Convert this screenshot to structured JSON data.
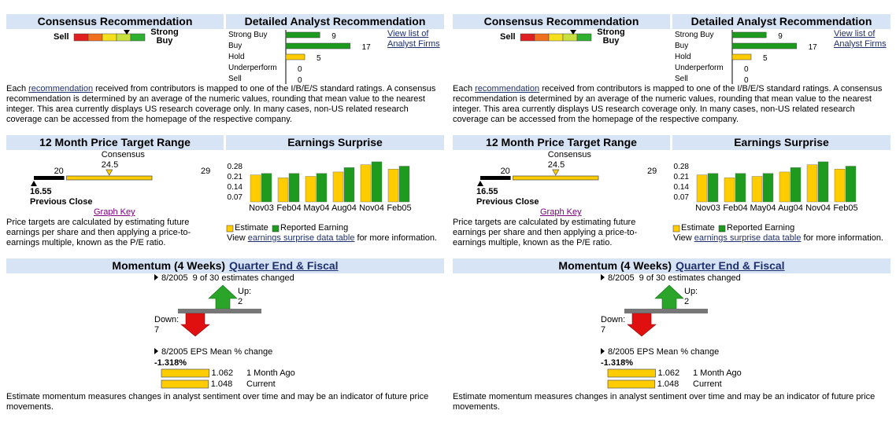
{
  "panels": [
    {
      "consensus": {
        "title": "Consensus Recommendation",
        "low_label": "Sell",
        "high_label": "Strong Buy"
      },
      "detailed": {
        "title": "Detailed Analyst Recommendation",
        "categories": [
          "Strong Buy",
          "Buy",
          "Hold",
          "Underperform",
          "Sell"
        ],
        "values": [
          9,
          17,
          5,
          0,
          0
        ],
        "colors": [
          "#1e9a1e",
          "#1e9a1e",
          "#ffcc00",
          "#1e9a1e",
          "#1e9a1e"
        ],
        "link": "View list of Analyst Firms"
      },
      "description": {
        "before": "Each ",
        "link": "recommendation",
        "after": " received from contributors is mapped to one of the I/B/E/S standard ratings. A consensus recommendation is determined by an average of the numeric values, rounding that mean value to the nearest integer. This area currently displays US research coverage only. In many cases, non-US related research coverage can be accessed from the homepage of the respective company."
      },
      "price_target": {
        "title": "12 Month Price Target Range",
        "consensus_label": "Consensus",
        "low": 20,
        "consensus": 24.5,
        "high": 29,
        "previous_close": 16.55,
        "previous_close_label": "Previous Close",
        "graph_key": "Graph Key",
        "description": "Price targets are calculated by estimating future earnings per share and then applying a price-to-earnings multiple, known as the P/E ratio."
      },
      "earnings": {
        "type": "bar",
        "title": "Earnings Surprise",
        "categories": [
          "Nov03",
          "Feb04",
          "May04",
          "Aug04",
          "Nov04",
          "Feb05"
        ],
        "series": [
          {
            "name": "Estimate",
            "color": "#ffcc00",
            "values": [
              0.22,
              0.2,
              0.21,
              0.24,
              0.29,
              0.26
            ]
          },
          {
            "name": "Reported Earning",
            "color": "#1e9a1e",
            "values": [
              0.23,
              0.23,
              0.23,
              0.27,
              0.31,
              0.28
            ]
          }
        ],
        "ylim": [
          0.035,
          0.315
        ],
        "yticks": [
          0.07,
          0.14,
          0.21,
          0.28
        ],
        "footer_before": "View ",
        "footer_link": "earnings surprise data table",
        "footer_after": " for more information."
      },
      "momentum": {
        "title": "Momentum (4 Weeks)",
        "link": "Quarter End & Fiscal",
        "period": "8/2005",
        "changed": "9 of 30 estimates changed",
        "up_label": "Up:",
        "up": 2,
        "down_label": "Down:",
        "down": 7,
        "eps_title": "8/2005 EPS Mean % change",
        "eps_change": "-1.318%",
        "categories": [
          "1 Month Ago",
          "Current"
        ],
        "values": [
          1.062,
          1.048
        ],
        "footer": "Estimate momentum measures changes in analyst sentiment over time and may be an indicator of future price movements."
      }
    },
    {
      "consensus": {
        "title": "Consensus Recommendation",
        "low_label": "Sell",
        "high_label": "Strong Buy"
      },
      "detailed": {
        "title": "Detailed Analyst Recommendation",
        "categories": [
          "Strong Buy",
          "Buy",
          "Hold",
          "Underperform",
          "Sell"
        ],
        "values": [
          9,
          17,
          5,
          0,
          0
        ],
        "colors": [
          "#1e9a1e",
          "#1e9a1e",
          "#ffcc00",
          "#1e9a1e",
          "#1e9a1e"
        ],
        "link": "View list of Analyst Firms"
      },
      "description": {
        "before": "Each ",
        "link": "recommendation",
        "after": " received from contributors is mapped to one of the I/B/E/S standard ratings. A consensus recommendation is determined by an average of the numeric values, rounding that mean value to the nearest integer. This area currently displays US research coverage only. In many cases, non-US related research coverage can be accessed from the homepage of the respective company."
      },
      "price_target": {
        "title": "12 Month Price Target Range",
        "consensus_label": "Consensus",
        "low": 20,
        "consensus": 24.5,
        "high": 29,
        "previous_close": 16.55,
        "previous_close_label": "Previous Close",
        "graph_key": "Graph Key",
        "description": "Price targets are calculated by estimating future earnings per share and then applying a price-to-earnings multiple, known as the P/E ratio."
      },
      "earnings": {
        "type": "bar",
        "title": "Earnings Surprise",
        "categories": [
          "Nov03",
          "Feb04",
          "May04",
          "Aug04",
          "Nov04",
          "Feb05"
        ],
        "series": [
          {
            "name": "Estimate",
            "color": "#ffcc00",
            "values": [
              0.22,
              0.2,
              0.21,
              0.24,
              0.29,
              0.26
            ]
          },
          {
            "name": "Reported Earning",
            "color": "#1e9a1e",
            "values": [
              0.23,
              0.23,
              0.23,
              0.27,
              0.31,
              0.28
            ]
          }
        ],
        "ylim": [
          0.035,
          0.315
        ],
        "yticks": [
          0.07,
          0.14,
          0.21,
          0.28
        ],
        "footer_before": "View ",
        "footer_link": "earnings surprise data table",
        "footer_after": " for more information."
      },
      "momentum": {
        "title": "Momentum (4 Weeks)",
        "link": "Quarter End & Fiscal",
        "period": "8/2005",
        "changed": "9 of 30 estimates changed",
        "up_label": "Up:",
        "up": 2,
        "down_label": "Down:",
        "down": 7,
        "eps_title": "8/2005 EPS Mean % change",
        "eps_change": "-1.318%",
        "categories": [
          "1 Month Ago",
          "Current"
        ],
        "values": [
          1.062,
          1.048
        ],
        "footer": "Estimate momentum measures changes in analyst sentiment over time and may be an indicator of future price movements."
      }
    }
  ]
}
